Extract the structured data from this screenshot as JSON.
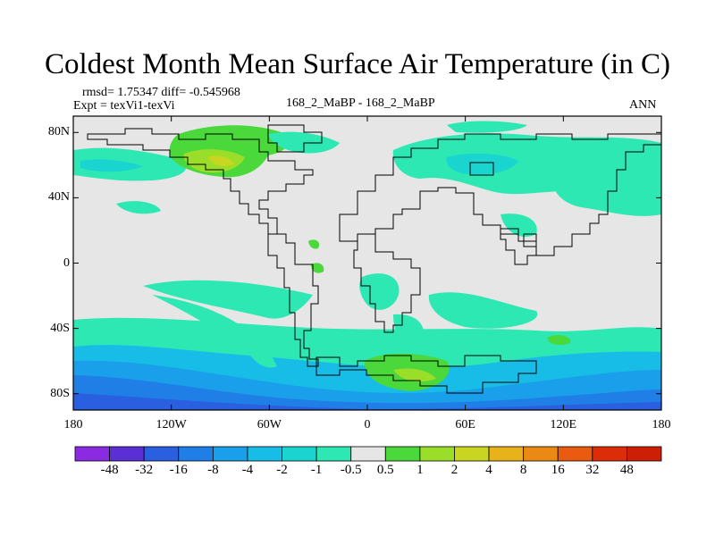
{
  "title": "Coldest Month Mean Surface Air Temperature (in C)",
  "stats_line": "rmsd= 1.75347 diff= -0.545968",
  "expt_line": "Expt = texVi1-texVi",
  "center_label": "168_2_MaBP - 168_2_MaBP",
  "season_label": "ANN",
  "y_axis": {
    "labels": [
      "80N",
      "40N",
      "0",
      "40S",
      "80S"
    ],
    "latitudes": [
      80,
      40,
      0,
      -40,
      -80
    ]
  },
  "x_axis": {
    "labels": [
      "180",
      "120W",
      "60W",
      "0",
      "60E",
      "120E",
      "180"
    ],
    "longitudes": [
      -180,
      -120,
      -60,
      0,
      60,
      120,
      180
    ]
  },
  "colorbar": {
    "labels": [
      "-48",
      "-32",
      "-16",
      "-8",
      "-4",
      "-2",
      "-1",
      "-0.5",
      "0.5",
      "1",
      "2",
      "4",
      "8",
      "16",
      "32",
      "48"
    ],
    "colors": [
      "#8a2be2",
      "#5a2fd6",
      "#2a5fe0",
      "#1f7fe6",
      "#1aa0ea",
      "#17bde6",
      "#1ad4cf",
      "#2ee8b4",
      "#e6e6e6",
      "#4ad83a",
      "#9ade2a",
      "#c8d622",
      "#e8b21a",
      "#ea8a14",
      "#ea5a10",
      "#dc2c08"
    ]
  }
}
